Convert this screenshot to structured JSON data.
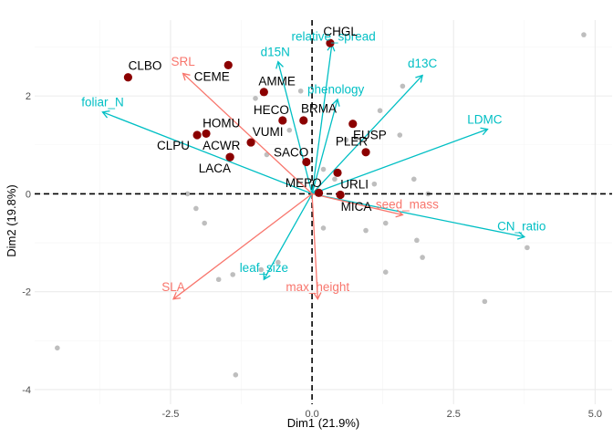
{
  "chart_data": {
    "type": "scatter",
    "subtype": "pca-biplot",
    "xlabel": "Dim1 (21.9%)",
    "ylabel": "Dim2 (19.8%)",
    "xlim": [
      -4.9,
      5.3
    ],
    "ylim": [
      -4.3,
      3.55
    ],
    "x_ticks": [
      -2.5,
      0.0,
      2.5,
      5.0
    ],
    "x_tick_labels": [
      "-2.5",
      "0.0",
      "2.5",
      "5.0"
    ],
    "y_ticks": [
      -4,
      -2,
      0,
      2
    ],
    "y_tick_labels": [
      "-4",
      "-2",
      "0",
      "2"
    ],
    "grid": true,
    "colors": {
      "highlight_point": "#8b0000",
      "background_point": "#bebebe",
      "arrow_cyan": "#00bfc4",
      "arrow_salmon": "#f8766d",
      "grid_major": "#ebebeb",
      "grid_minor": "#f5f5f5",
      "zero_line": "#000000"
    },
    "background_points": [
      [
        4.8,
        3.25
      ],
      [
        1.6,
        2.2
      ],
      [
        -0.2,
        2.1
      ],
      [
        -1.0,
        1.95
      ],
      [
        1.2,
        1.7
      ],
      [
        -0.4,
        1.3
      ],
      [
        0.6,
        1.1
      ],
      [
        1.55,
        1.2
      ],
      [
        -0.8,
        0.8
      ],
      [
        0.2,
        0.5
      ],
      [
        0.4,
        0.3
      ],
      [
        1.1,
        0.2
      ],
      [
        1.8,
        0.3
      ],
      [
        2.05,
        0.0
      ],
      [
        -2.2,
        0.0
      ],
      [
        -2.05,
        -0.3
      ],
      [
        -1.9,
        -0.6
      ],
      [
        0.2,
        -0.7
      ],
      [
        0.95,
        -0.75
      ],
      [
        1.3,
        -0.6
      ],
      [
        1.85,
        -0.95
      ],
      [
        1.95,
        -1.3
      ],
      [
        -0.6,
        -1.4
      ],
      [
        -0.9,
        -1.55
      ],
      [
        -1.4,
        -1.65
      ],
      [
        -1.65,
        -1.75
      ],
      [
        1.3,
        -1.6
      ],
      [
        3.8,
        -1.1
      ],
      [
        3.05,
        -2.2
      ],
      [
        -4.5,
        -3.15
      ],
      [
        -1.35,
        -3.7
      ]
    ],
    "species": [
      {
        "name": "CHGL",
        "x": 0.32,
        "y": 3.08
      },
      {
        "name": "CLBO",
        "x": -3.25,
        "y": 2.38
      },
      {
        "name": "CEME",
        "x": -1.48,
        "y": 2.63
      },
      {
        "name": "AMME",
        "x": -0.85,
        "y": 2.08
      },
      {
        "name": "HECO",
        "x": -0.52,
        "y": 1.5
      },
      {
        "name": "BRMA",
        "x": -0.15,
        "y": 1.5
      },
      {
        "name": "HOMU",
        "x": -1.87,
        "y": 1.23
      },
      {
        "name": "CLPU",
        "x": -2.03,
        "y": 1.2
      },
      {
        "name": "VUMI",
        "x": -1.08,
        "y": 1.05
      },
      {
        "name": "ACWR",
        "x": -1.45,
        "y": 0.75
      },
      {
        "name": "LACA",
        "x": -1.45,
        "y": 0.75
      },
      {
        "name": "EUSP",
        "x": 0.72,
        "y": 1.43
      },
      {
        "name": "PLER",
        "x": 0.95,
        "y": 0.85
      },
      {
        "name": "SACO",
        "x": -0.1,
        "y": 0.65
      },
      {
        "name": "URLI",
        "x": 0.45,
        "y": 0.43
      },
      {
        "name": "MEPO",
        "x": 0.12,
        "y": 0.02
      },
      {
        "name": "MICA",
        "x": 0.5,
        "y": -0.02
      }
    ],
    "species_labels": [
      {
        "name": "CHGL",
        "x": 0.5,
        "y": 3.3
      },
      {
        "name": "CLBO",
        "x": -2.95,
        "y": 2.6
      },
      {
        "name": "CEME",
        "x": -1.77,
        "y": 2.38
      },
      {
        "name": "AMME",
        "x": -0.62,
        "y": 2.28
      },
      {
        "name": "HECO",
        "x": -0.72,
        "y": 1.7
      },
      {
        "name": "BRMA",
        "x": 0.12,
        "y": 1.72
      },
      {
        "name": "HOMU",
        "x": -1.6,
        "y": 1.43
      },
      {
        "name": "CLPU",
        "x": -2.45,
        "y": 0.97
      },
      {
        "name": "VUMI",
        "x": -0.78,
        "y": 1.25
      },
      {
        "name": "ACWR",
        "x": -1.6,
        "y": 0.97
      },
      {
        "name": "LACA",
        "x": -1.72,
        "y": 0.5
      },
      {
        "name": "EUSP",
        "x": 1.02,
        "y": 1.18
      },
      {
        "name": "PLER",
        "x": 0.7,
        "y": 1.05
      },
      {
        "name": "SACO",
        "x": -0.37,
        "y": 0.83
      },
      {
        "name": "URLI",
        "x": 0.75,
        "y": 0.18
      },
      {
        "name": "MEPO",
        "x": -0.15,
        "y": 0.2
      },
      {
        "name": "MICA",
        "x": 0.78,
        "y": -0.28
      }
    ],
    "variables": [
      {
        "name": "relative_spread",
        "x": 0.35,
        "y": 3.05,
        "label_x": 0.38,
        "label_y": 3.2,
        "color": "cyan"
      },
      {
        "name": "d15N",
        "x": -0.6,
        "y": 2.7,
        "label_x": -0.65,
        "label_y": 2.88,
        "color": "cyan"
      },
      {
        "name": "d13C",
        "x": 1.95,
        "y": 2.42,
        "label_x": 1.95,
        "label_y": 2.65,
        "color": "cyan"
      },
      {
        "name": "phenology",
        "x": 0.45,
        "y": 1.93,
        "label_x": 0.42,
        "label_y": 2.12,
        "color": "cyan"
      },
      {
        "name": "foliar_N",
        "x": -3.7,
        "y": 1.67,
        "label_x": -3.7,
        "label_y": 1.85,
        "color": "cyan"
      },
      {
        "name": "LDMC",
        "x": 3.1,
        "y": 1.32,
        "label_x": 3.05,
        "label_y": 1.5,
        "color": "cyan"
      },
      {
        "name": "CN_ratio",
        "x": 3.75,
        "y": -0.88,
        "label_x": 3.7,
        "label_y": -0.68,
        "color": "cyan"
      },
      {
        "name": "leaf_size",
        "x": -0.85,
        "y": -1.75,
        "label_x": -0.85,
        "label_y": -1.53,
        "color": "cyan"
      },
      {
        "name": "SRL",
        "x": -2.28,
        "y": 2.46,
        "label_x": -2.28,
        "label_y": 2.68,
        "color": "salmon"
      },
      {
        "name": "seed_mass",
        "x": 1.6,
        "y": -0.43,
        "label_x": 1.68,
        "label_y": -0.23,
        "color": "salmon"
      },
      {
        "name": "SLA",
        "x": -2.45,
        "y": -2.15,
        "label_x": -2.45,
        "label_y": -1.92,
        "color": "salmon"
      },
      {
        "name": "max_height",
        "x": 0.1,
        "y": -2.15,
        "label_x": 0.1,
        "label_y": -1.92,
        "color": "salmon"
      }
    ]
  }
}
